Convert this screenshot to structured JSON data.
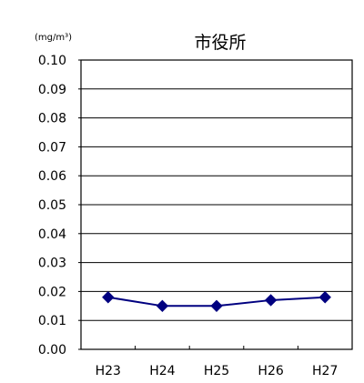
{
  "chart_data": {
    "type": "line",
    "title": "市役所",
    "unit_label": "(mg/m³)",
    "categories": [
      "H23",
      "H24",
      "H25",
      "H26",
      "H27"
    ],
    "series": [
      {
        "values": [
          0.018,
          0.015,
          0.015,
          0.017,
          0.018
        ],
        "color": "#000080"
      }
    ],
    "ylim": [
      0,
      0.1
    ],
    "y_ticks": [
      "0.00",
      "0.01",
      "0.02",
      "0.03",
      "0.04",
      "0.05",
      "0.06",
      "0.07",
      "0.08",
      "0.09",
      "0.10"
    ],
    "grid": true,
    "legend": "none"
  }
}
